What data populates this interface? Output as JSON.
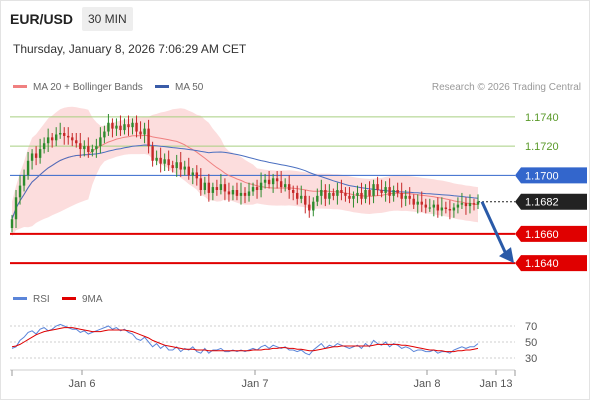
{
  "header": {
    "pair": "EUR/USD",
    "interval": "30 MIN",
    "timestamp": "Thursday, January 8, 2026 7:06:29 AM CET"
  },
  "legend": {
    "ma20_label": "MA 20 + Bollinger Bands",
    "ma50_label": "MA 50",
    "credit": "Research © 2026 Trading Central",
    "rsi_label": "RSI",
    "rsi_ma_label": "9MA"
  },
  "colors": {
    "candle_up": "#2e8b2e",
    "candle_down": "#c62828",
    "bollinger_band": "#fbd7d7",
    "ma20": "#f08080",
    "ma50": "#4a6fc0",
    "resistance": "#3366cc",
    "support": "#e00000",
    "pivot": "#222222",
    "target_line": "#a8cf80",
    "rsi": "#5b85d9",
    "rsi_ma": "#e00000",
    "arrow": "#2a5aa8"
  },
  "chart_data": {
    "type": "candlestick",
    "ylim": [
      1.1625,
      1.1755
    ],
    "x_ticks": [
      "Jan 6",
      "Jan 7",
      "Jan 8",
      "Jan 13"
    ],
    "levels": [
      {
        "label": "1.1740",
        "value": 1.174,
        "kind": "target"
      },
      {
        "label": "1.1720",
        "value": 1.172,
        "kind": "target"
      },
      {
        "label": "1.1700",
        "value": 1.17,
        "kind": "resistance"
      },
      {
        "label": "1.1682",
        "value": 1.1682,
        "kind": "pivot"
      },
      {
        "label": "1.1660",
        "value": 1.166,
        "kind": "support"
      },
      {
        "label": "1.1640",
        "value": 1.164,
        "kind": "support"
      }
    ],
    "forecast": {
      "from": 1.1682,
      "to": 1.164
    },
    "closes": [
      1.167,
      1.1685,
      1.1693,
      1.17,
      1.171,
      1.1715,
      1.1712,
      1.1718,
      1.1722,
      1.1726,
      1.1724,
      1.1728,
      1.1729,
      1.1727,
      1.1726,
      1.1724,
      1.1722,
      1.1718,
      1.172,
      1.1716,
      1.1718,
      1.172,
      1.1726,
      1.173,
      1.1736,
      1.1732,
      1.1734,
      1.1731,
      1.1735,
      1.1733,
      1.1736,
      1.173,
      1.1728,
      1.1732,
      1.172,
      1.171,
      1.1712,
      1.1708,
      1.1711,
      1.1707,
      1.1705,
      1.1709,
      1.1704,
      1.1706,
      1.17,
      1.1702,
      1.1698,
      1.169,
      1.1695,
      1.1688,
      1.1692,
      1.169,
      1.1694,
      1.1689,
      1.1687,
      1.169,
      1.1686,
      1.1688,
      1.1686,
      1.1689,
      1.1692,
      1.169,
      1.1695,
      1.1697,
      1.1694,
      1.1698,
      1.1696,
      1.1692,
      1.1694,
      1.169,
      1.1688,
      1.1684,
      1.1686,
      1.168,
      1.1676,
      1.1682,
      1.1686,
      1.169,
      1.1684,
      1.1688,
      1.1686,
      1.169,
      1.1688,
      1.1686,
      1.1684,
      1.1686,
      1.1688,
      1.1684,
      1.169,
      1.1686,
      1.1694,
      1.169,
      1.1688,
      1.1692,
      1.1686,
      1.169,
      1.1688,
      1.1684,
      1.1686,
      1.1684,
      1.168,
      1.1682,
      1.168,
      1.1678,
      1.1678,
      1.168,
      1.1676,
      1.1678,
      1.1677,
      1.1676,
      1.1678,
      1.168,
      1.1681,
      1.1679,
      1.1681,
      1.168,
      1.1682
    ],
    "rsi": {
      "ticks": [
        70,
        50,
        30
      ],
      "ylim": [
        20,
        80
      ],
      "values": [
        42,
        44,
        52,
        56,
        62,
        64,
        60,
        66,
        68,
        64,
        66,
        70,
        72,
        70,
        68,
        66,
        66,
        62,
        64,
        60,
        62,
        64,
        66,
        68,
        70,
        66,
        68,
        64,
        66,
        62,
        60,
        54,
        52,
        56,
        50,
        44,
        48,
        42,
        46,
        40,
        40,
        44,
        38,
        42,
        40,
        44,
        38,
        36,
        42,
        36,
        40,
        40,
        42,
        38,
        38,
        40,
        38,
        40,
        38,
        40,
        42,
        40,
        44,
        46,
        42,
        46,
        44,
        42,
        44,
        40,
        40,
        38,
        40,
        36,
        34,
        40,
        44,
        48,
        42,
        46,
        44,
        48,
        46,
        44,
        42,
        44,
        46,
        42,
        48,
        44,
        52,
        48,
        46,
        50,
        44,
        48,
        46,
        42,
        44,
        42,
        38,
        40,
        40,
        38,
        38,
        40,
        36,
        38,
        38,
        36,
        40,
        42,
        44,
        42,
        44,
        44,
        48
      ],
      "ma_values": [
        44,
        45,
        47,
        50,
        53,
        56,
        59,
        61,
        63,
        64,
        65,
        66,
        67,
        68,
        68,
        68,
        67,
        66,
        65,
        64,
        63,
        63,
        63,
        64,
        65,
        65,
        65,
        65,
        65,
        64,
        63,
        61,
        59,
        57,
        55,
        52,
        50,
        48,
        46,
        45,
        44,
        43,
        42,
        41,
        41,
        41,
        40,
        40,
        40,
        39,
        39,
        39,
        39,
        39,
        39,
        39,
        39,
        39,
        39,
        39,
        40,
        40,
        40,
        41,
        41,
        42,
        42,
        43,
        43,
        42,
        42,
        41,
        41,
        40,
        39,
        39,
        40,
        41,
        42,
        43,
        44,
        44,
        45,
        45,
        45,
        45,
        45,
        45,
        45,
        45,
        46,
        47,
        47,
        47,
        47,
        47,
        47,
        46,
        46,
        45,
        44,
        43,
        42,
        41,
        40,
        40,
        39,
        39,
        38,
        38,
        38,
        39,
        39,
        40,
        40,
        41,
        42
      ]
    }
  }
}
